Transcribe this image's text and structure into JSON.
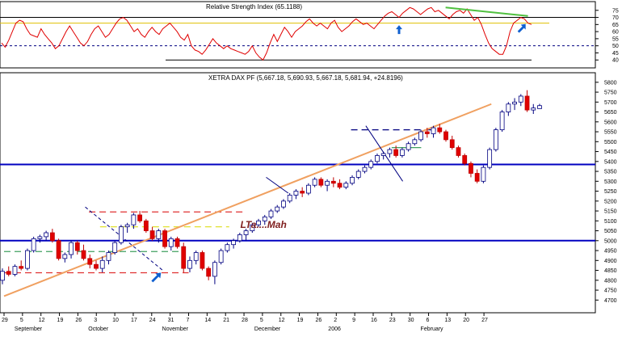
{
  "chart_data": [
    {
      "type": "line",
      "title": "Relative Strength Index (65.1188)",
      "ylim": [
        35,
        80
      ],
      "y_ticks": [
        "75",
        "70",
        "65",
        "60",
        "55",
        "50",
        "45",
        "40"
      ],
      "y_tick_values": [
        75,
        70,
        65,
        60,
        55,
        50,
        45,
        40
      ],
      "reference_lines": [
        {
          "value": 70,
          "color": "#000000",
          "style": "solid"
        },
        {
          "value": 66,
          "color": "#e0c000",
          "style": "solid"
        },
        {
          "value": 50,
          "color": "#000080",
          "style": "dashed"
        },
        {
          "value": 40,
          "color": "#000000",
          "style": "solid"
        }
      ],
      "series": [
        {
          "color": "#e00000",
          "values": [
            52,
            49,
            54,
            60,
            66,
            68,
            67,
            62,
            58,
            57,
            56,
            62,
            58,
            55,
            52,
            48,
            50,
            55,
            60,
            64,
            60,
            56,
            52,
            50,
            53,
            58,
            62,
            64,
            60,
            56,
            58,
            62,
            66,
            69,
            70,
            68,
            64,
            60,
            62,
            58,
            56,
            60,
            63,
            60,
            58,
            62,
            64,
            66,
            63,
            60,
            56,
            54,
            58,
            50,
            47,
            46,
            44,
            47,
            51,
            55,
            52,
            50,
            48,
            50,
            48,
            47,
            46,
            45,
            44,
            46,
            50,
            45,
            42,
            40,
            45,
            52,
            58,
            53,
            58,
            63,
            60,
            56,
            60,
            62,
            64,
            67,
            69,
            66,
            64,
            66,
            64,
            62,
            66,
            68,
            63,
            60,
            62,
            64,
            67,
            69,
            67,
            65,
            66,
            64,
            62,
            65,
            68,
            71,
            73,
            74,
            72,
            70,
            73,
            75,
            77,
            76,
            74,
            72,
            74,
            76,
            77,
            74,
            75,
            73,
            71,
            69,
            72,
            74,
            75,
            73,
            76,
            72,
            68,
            70,
            65,
            58,
            52,
            48,
            46,
            44,
            44,
            50,
            60,
            66,
            68,
            70,
            69,
            66,
            65
          ]
        }
      ],
      "trend_lines": [
        {
          "from_index": 124,
          "from_value": 77,
          "to_index": 147,
          "to_value": 71,
          "color": "#50c040"
        }
      ],
      "arrows": [
        {
          "index": 111,
          "value": 60,
          "direction": "up",
          "color": "#1060d0"
        },
        {
          "index": 145,
          "value": 62,
          "direction": "up-right",
          "color": "#1060d0"
        }
      ]
    },
    {
      "type": "candlestick",
      "title": "XETRA DAX PF (5,667.18, 5,690.93, 5,667.18, 5,681.94, +24.8196)",
      "ylim": [
        4640,
        5840
      ],
      "y_ticks": [
        "5800",
        "5750",
        "5700",
        "5650",
        "5600",
        "5550",
        "5500",
        "5450",
        "5400",
        "5350",
        "5300",
        "5250",
        "5200",
        "5150",
        "5100",
        "5050",
        "5000",
        "4950",
        "4900",
        "4850",
        "4800",
        "4750",
        "4700"
      ],
      "y_tick_values": [
        5800,
        5750,
        5700,
        5650,
        5600,
        5550,
        5500,
        5450,
        5400,
        5350,
        5300,
        5250,
        5200,
        5150,
        5100,
        5050,
        5000,
        4950,
        4900,
        4850,
        4800,
        4750,
        4700
      ],
      "x_ticks": [
        "29",
        "5",
        "12",
        "19",
        "26",
        "3",
        "10",
        "17",
        "24",
        "31",
        "7",
        "14",
        "21",
        "28",
        "5",
        "12",
        "19",
        "26",
        "2",
        "9",
        "16",
        "23",
        "30",
        "6",
        "13",
        "20",
        "27"
      ],
      "x_month_labels": [
        "September",
        "October",
        "November",
        "December",
        "2006",
        "February"
      ],
      "x_month_positions": [
        1,
        5,
        9,
        14,
        18,
        23
      ],
      "annotation": {
        "text": "LTa....Mah",
        "x_position": 12.8,
        "value": 5065,
        "color": "#802020"
      },
      "levels": [
        {
          "value": 5385,
          "color": "#0000c0",
          "style": "solid"
        },
        {
          "value": 5000,
          "color": "#0000c0",
          "style": "solid"
        }
      ],
      "channels": [
        {
          "value": 5145,
          "from_position": 4.6,
          "to_position": 13.0,
          "color": "#e03030",
          "style": "dashed"
        },
        {
          "value": 5070,
          "from_position": 5.2,
          "to_position": 12.2,
          "color": "#e0e030",
          "style": "dashed"
        },
        {
          "value": 4945,
          "from_position": 0.0,
          "to_position": 9.6,
          "color": "#40a060",
          "style": "dashed"
        },
        {
          "value": 4838,
          "from_position": 0.0,
          "to_position": 10.0,
          "color": "#e03030",
          "style": "dashed"
        },
        {
          "value": 5560,
          "from_position": 18.8,
          "to_position": 23.4,
          "color": "#000080",
          "style": "dashed"
        },
        {
          "value": 5470,
          "from_position": 21.0,
          "to_position": 22.6,
          "color": "#40a060",
          "style": "solid"
        }
      ],
      "trend_lines": [
        {
          "from_position": 0.0,
          "from_value": 4720,
          "to_position": 26.4,
          "to_value": 5690,
          "color": "#f0a060",
          "style": "solid"
        },
        {
          "from_position": 4.4,
          "from_value": 5170,
          "to_position": 8.6,
          "to_value": 4850,
          "color": "#000080",
          "style": "dashed"
        },
        {
          "from_position": 19.6,
          "from_value": 5580,
          "to_position": 21.6,
          "to_value": 5300,
          "color": "#000080",
          "style": "solid"
        },
        {
          "from_position": 14.2,
          "from_value": 5320,
          "to_position": 15.4,
          "to_value": 5240,
          "color": "#000080",
          "style": "solid"
        }
      ],
      "arrows": [
        {
          "position": 8.2,
          "value": 4810,
          "direction": "up-right",
          "color": "#1060d0"
        }
      ],
      "candles": [
        {
          "o": 4800,
          "h": 4860,
          "l": 4780,
          "c": 4845
        },
        {
          "o": 4845,
          "h": 4870,
          "l": 4820,
          "c": 4830
        },
        {
          "o": 4830,
          "h": 4880,
          "l": 4820,
          "c": 4870
        },
        {
          "o": 4870,
          "h": 4900,
          "l": 4850,
          "c": 4860
        },
        {
          "o": 4860,
          "h": 4960,
          "l": 4850,
          "c": 4950
        },
        {
          "o": 4950,
          "h": 5020,
          "l": 4940,
          "c": 5010
        },
        {
          "o": 5010,
          "h": 5030,
          "l": 4990,
          "c": 5020
        },
        {
          "o": 5020,
          "h": 5050,
          "l": 5000,
          "c": 5040
        },
        {
          "o": 5040,
          "h": 5060,
          "l": 4990,
          "c": 5000
        },
        {
          "o": 5000,
          "h": 5010,
          "l": 4900,
          "c": 4910
        },
        {
          "o": 4910,
          "h": 4940,
          "l": 4890,
          "c": 4930
        },
        {
          "o": 4930,
          "h": 5000,
          "l": 4910,
          "c": 4990
        },
        {
          "o": 4990,
          "h": 5000,
          "l": 4930,
          "c": 4950
        },
        {
          "o": 4950,
          "h": 4980,
          "l": 4900,
          "c": 4910
        },
        {
          "o": 4910,
          "h": 4930,
          "l": 4860,
          "c": 4880
        },
        {
          "o": 4880,
          "h": 4900,
          "l": 4850,
          "c": 4860
        },
        {
          "o": 4860,
          "h": 4920,
          "l": 4840,
          "c": 4900
        },
        {
          "o": 4900,
          "h": 4950,
          "l": 4880,
          "c": 4940
        },
        {
          "o": 4940,
          "h": 5000,
          "l": 4930,
          "c": 4990
        },
        {
          "o": 4990,
          "h": 5080,
          "l": 4980,
          "c": 5070
        },
        {
          "o": 5070,
          "h": 5090,
          "l": 5040,
          "c": 5080
        },
        {
          "o": 5080,
          "h": 5140,
          "l": 5060,
          "c": 5130
        },
        {
          "o": 5130,
          "h": 5150,
          "l": 5090,
          "c": 5100
        },
        {
          "o": 5100,
          "h": 5110,
          "l": 5040,
          "c": 5050
        },
        {
          "o": 5050,
          "h": 5070,
          "l": 5000,
          "c": 5010
        },
        {
          "o": 5010,
          "h": 5060,
          "l": 4990,
          "c": 5050
        },
        {
          "o": 5050,
          "h": 5060,
          "l": 4960,
          "c": 4970
        },
        {
          "o": 4970,
          "h": 5020,
          "l": 4950,
          "c": 5010
        },
        {
          "o": 5010,
          "h": 5020,
          "l": 4960,
          "c": 4970
        },
        {
          "o": 4970,
          "h": 4990,
          "l": 4840,
          "c": 4860
        },
        {
          "o": 4860,
          "h": 4920,
          "l": 4840,
          "c": 4900
        },
        {
          "o": 4900,
          "h": 4950,
          "l": 4880,
          "c": 4940
        },
        {
          "o": 4940,
          "h": 4950,
          "l": 4850,
          "c": 4860
        },
        {
          "o": 4860,
          "h": 4870,
          "l": 4800,
          "c": 4820
        },
        {
          "o": 4820,
          "h": 4900,
          "l": 4780,
          "c": 4890
        },
        {
          "o": 4890,
          "h": 4960,
          "l": 4880,
          "c": 4950
        },
        {
          "o": 4950,
          "h": 4990,
          "l": 4940,
          "c": 4980
        },
        {
          "o": 4980,
          "h": 5010,
          "l": 4960,
          "c": 5000
        },
        {
          "o": 5000,
          "h": 5040,
          "l": 4990,
          "c": 5030
        },
        {
          "o": 5030,
          "h": 5060,
          "l": 5000,
          "c": 5050
        },
        {
          "o": 5050,
          "h": 5090,
          "l": 5040,
          "c": 5080
        },
        {
          "o": 5080,
          "h": 5110,
          "l": 5070,
          "c": 5100
        },
        {
          "o": 5100,
          "h": 5130,
          "l": 5080,
          "c": 5120
        },
        {
          "o": 5120,
          "h": 5160,
          "l": 5110,
          "c": 5150
        },
        {
          "o": 5150,
          "h": 5180,
          "l": 5140,
          "c": 5170
        },
        {
          "o": 5170,
          "h": 5210,
          "l": 5160,
          "c": 5200
        },
        {
          "o": 5200,
          "h": 5240,
          "l": 5190,
          "c": 5230
        },
        {
          "o": 5230,
          "h": 5260,
          "l": 5210,
          "c": 5250
        },
        {
          "o": 5250,
          "h": 5270,
          "l": 5220,
          "c": 5240
        },
        {
          "o": 5240,
          "h": 5290,
          "l": 5230,
          "c": 5280
        },
        {
          "o": 5280,
          "h": 5320,
          "l": 5270,
          "c": 5310
        },
        {
          "o": 5310,
          "h": 5320,
          "l": 5270,
          "c": 5280
        },
        {
          "o": 5280,
          "h": 5310,
          "l": 5250,
          "c": 5300
        },
        {
          "o": 5300,
          "h": 5320,
          "l": 5270,
          "c": 5290
        },
        {
          "o": 5290,
          "h": 5310,
          "l": 5260,
          "c": 5270
        },
        {
          "o": 5270,
          "h": 5300,
          "l": 5260,
          "c": 5290
        },
        {
          "o": 5290,
          "h": 5330,
          "l": 5280,
          "c": 5320
        },
        {
          "o": 5320,
          "h": 5360,
          "l": 5310,
          "c": 5350
        },
        {
          "o": 5350,
          "h": 5380,
          "l": 5340,
          "c": 5370
        },
        {
          "o": 5370,
          "h": 5410,
          "l": 5360,
          "c": 5400
        },
        {
          "o": 5400,
          "h": 5440,
          "l": 5390,
          "c": 5430
        },
        {
          "o": 5430,
          "h": 5450,
          "l": 5410,
          "c": 5440
        },
        {
          "o": 5440,
          "h": 5470,
          "l": 5420,
          "c": 5460
        },
        {
          "o": 5460,
          "h": 5480,
          "l": 5420,
          "c": 5430
        },
        {
          "o": 5430,
          "h": 5470,
          "l": 5420,
          "c": 5460
        },
        {
          "o": 5460,
          "h": 5500,
          "l": 5450,
          "c": 5490
        },
        {
          "o": 5490,
          "h": 5520,
          "l": 5480,
          "c": 5510
        },
        {
          "o": 5510,
          "h": 5560,
          "l": 5500,
          "c": 5550
        },
        {
          "o": 5550,
          "h": 5570,
          "l": 5520,
          "c": 5540
        },
        {
          "o": 5540,
          "h": 5580,
          "l": 5520,
          "c": 5570
        },
        {
          "o": 5570,
          "h": 5590,
          "l": 5540,
          "c": 5550
        },
        {
          "o": 5550,
          "h": 5560,
          "l": 5500,
          "c": 5510
        },
        {
          "o": 5510,
          "h": 5530,
          "l": 5460,
          "c": 5470
        },
        {
          "o": 5470,
          "h": 5480,
          "l": 5420,
          "c": 5430
        },
        {
          "o": 5430,
          "h": 5440,
          "l": 5380,
          "c": 5390
        },
        {
          "o": 5390,
          "h": 5400,
          "l": 5320,
          "c": 5340
        },
        {
          "o": 5340,
          "h": 5360,
          "l": 5290,
          "c": 5300
        },
        {
          "o": 5300,
          "h": 5380,
          "l": 5290,
          "c": 5370
        },
        {
          "o": 5370,
          "h": 5470,
          "l": 5360,
          "c": 5460
        },
        {
          "o": 5460,
          "h": 5570,
          "l": 5450,
          "c": 5560
        },
        {
          "o": 5560,
          "h": 5660,
          "l": 5550,
          "c": 5650
        },
        {
          "o": 5650,
          "h": 5700,
          "l": 5630,
          "c": 5690
        },
        {
          "o": 5690,
          "h": 5720,
          "l": 5660,
          "c": 5700
        },
        {
          "o": 5700,
          "h": 5740,
          "l": 5680,
          "c": 5730
        },
        {
          "o": 5730,
          "h": 5760,
          "l": 5650,
          "c": 5660
        },
        {
          "o": 5660,
          "h": 5690,
          "l": 5640,
          "c": 5670
        },
        {
          "o": 5667,
          "h": 5691,
          "l": 5667,
          "c": 5682
        }
      ]
    }
  ]
}
